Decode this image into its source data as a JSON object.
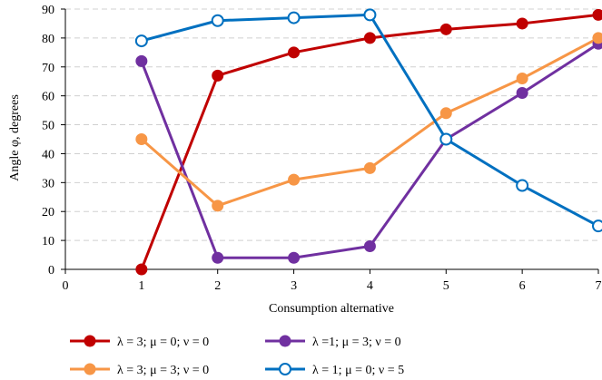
{
  "chart_data": {
    "type": "line",
    "xlabel": "Consumption alternative",
    "ylabel": "Angle φ, degrees",
    "xlim": [
      0,
      7
    ],
    "ylim": [
      0,
      90
    ],
    "x_ticks": [
      "0",
      "1",
      "2",
      "3",
      "4",
      "5",
      "6",
      "7"
    ],
    "y_ticks": [
      "0",
      "10",
      "20",
      "30",
      "40",
      "50",
      "60",
      "70",
      "80",
      "90"
    ],
    "grid": "horizontal dashed",
    "legend_position": "bottom",
    "series": [
      {
        "name": "λ = 3; μ = 0; ν = 0",
        "color": "#C00000",
        "marker": "filled-circle",
        "x": [
          1,
          2,
          3,
          4,
          5,
          6,
          7
        ],
        "y": [
          0,
          67,
          75,
          80,
          83,
          85,
          88
        ]
      },
      {
        "name": "λ =1; μ = 3; ν = 0",
        "color": "#7030A0",
        "marker": "filled-circle",
        "x": [
          1,
          2,
          3,
          4,
          5,
          6,
          7
        ],
        "y": [
          72,
          4,
          4,
          8,
          45,
          61,
          78
        ]
      },
      {
        "name": "λ = 3; μ = 3; ν = 0",
        "color": "#F79646",
        "marker": "filled-circle",
        "x": [
          1,
          2,
          3,
          4,
          5,
          6,
          7
        ],
        "y": [
          45,
          22,
          31,
          35,
          54,
          66,
          80
        ]
      },
      {
        "name": "λ = 1; μ = 0; ν = 5",
        "color": "#0070C0",
        "marker": "hollow-circle",
        "x": [
          1,
          2,
          3,
          4,
          5,
          6,
          7
        ],
        "y": [
          79,
          86,
          87,
          88,
          45,
          29,
          15
        ]
      }
    ]
  }
}
